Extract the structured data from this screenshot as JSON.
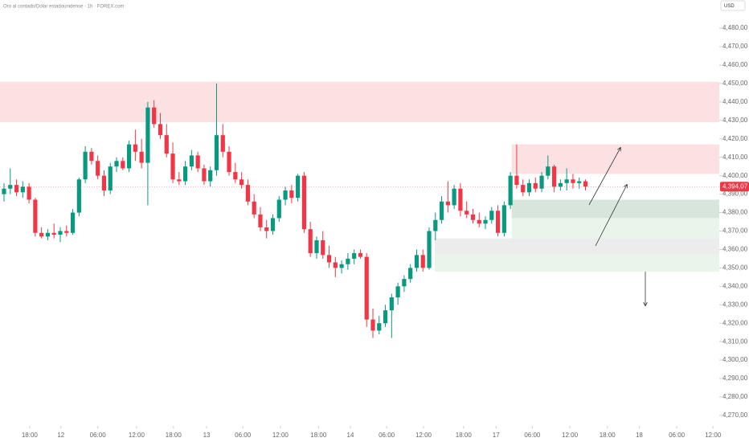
{
  "chart_data": {
    "type": "candlestick",
    "title": "Oro al contado/Dólar estadounidense · 1h · FOREX.com",
    "currency": "USD",
    "up_color": "#089981",
    "down_color": "#f23645",
    "x": [
      0,
      1,
      2,
      3,
      4,
      5,
      6,
      7,
      8,
      9,
      10,
      11,
      12,
      13,
      14,
      15,
      16,
      17,
      18,
      19,
      20,
      21,
      22,
      23,
      24,
      25,
      26,
      27,
      28,
      29,
      30,
      31,
      32,
      33,
      34,
      35,
      36,
      37,
      38,
      39,
      40,
      41,
      42,
      43,
      44,
      45,
      46,
      47,
      48,
      49,
      50,
      51,
      52,
      53,
      54,
      55,
      56,
      57,
      58,
      59,
      60,
      61,
      62,
      63,
      64,
      65,
      66,
      67,
      68,
      69,
      70,
      71,
      72,
      73,
      74,
      75,
      76,
      77,
      78,
      79,
      80,
      81,
      82,
      83,
      84,
      85,
      86,
      87,
      88,
      89,
      90,
      91,
      92,
      93
    ],
    "open": [
      4390,
      4393,
      4395,
      4391,
      4394,
      4387,
      4369,
      4367,
      4369,
      4368,
      4370,
      4369,
      4380,
      4398,
      4413,
      4408,
      4400,
      4392,
      4405,
      4408,
      4404,
      4417,
      4413,
      4407,
      4437,
      4428,
      4422,
      4412,
      4398,
      4397,
      4405,
      4411,
      4404,
      4397,
      4403,
      4422,
      4413,
      4402,
      4398,
      4395,
      4386,
      4379,
      4372,
      4370,
      4377,
      4387,
      4392,
      4388,
      4400,
      4371,
      4358,
      4365,
      4357,
      4353,
      4350,
      4352,
      4355,
      4358,
      4356,
      4322,
      4316,
      4320,
      4327,
      4334,
      4340,
      4344,
      4350,
      4357,
      4350,
      4370,
      4376,
      4386,
      4384,
      4393,
      4381,
      4379,
      4376,
      4374,
      4376,
      4381,
      4369,
      4384,
      4400,
      4395,
      4391,
      4396,
      4393,
      4400,
      4405,
      4394,
      4396,
      4398,
      4396,
      4397
    ],
    "high": [
      4396,
      4404,
      4398,
      4397,
      4396,
      4388,
      4372,
      4371,
      4374,
      4372,
      4373,
      4382,
      4399,
      4416,
      4415,
      4411,
      4403,
      4407,
      4410,
      4410,
      4419,
      4425,
      4420,
      4440,
      4441,
      4434,
      4428,
      4418,
      4402,
      4408,
      4414,
      4413,
      4406,
      4405,
      4450,
      4428,
      4416,
      4407,
      4402,
      4398,
      4390,
      4383,
      4376,
      4379,
      4389,
      4394,
      4395,
      4401,
      4402,
      4375,
      4367,
      4370,
      4362,
      4356,
      4354,
      4358,
      4360,
      4360,
      4358,
      4328,
      4324,
      4330,
      4336,
      4342,
      4346,
      4352,
      4360,
      4360,
      4372,
      4380,
      4389,
      4397,
      4395,
      4396,
      4386,
      4382,
      4380,
      4378,
      4383,
      4384,
      4386,
      4402,
      4417,
      4398,
      4398,
      4399,
      4402,
      4411,
      4406,
      4398,
      4404,
      4401,
      4399,
      4398
    ],
    "low": [
      4386,
      4390,
      4389,
      4388,
      4385,
      4367,
      4366,
      4365,
      4366,
      4364,
      4367,
      4368,
      4378,
      4396,
      4406,
      4398,
      4389,
      4390,
      4402,
      4403,
      4402,
      4408,
      4404,
      4384,
      4426,
      4420,
      4410,
      4396,
      4395,
      4395,
      4403,
      4402,
      4395,
      4394,
      4400,
      4410,
      4400,
      4396,
      4393,
      4384,
      4377,
      4370,
      4366,
      4368,
      4375,
      4384,
      4385,
      4386,
      4369,
      4356,
      4355,
      4355,
      4350,
      4345,
      4347,
      4349,
      4352,
      4355,
      4318,
      4312,
      4314,
      4318,
      4312,
      4330,
      4337,
      4342,
      4348,
      4348,
      4349,
      4365,
      4374,
      4380,
      4382,
      4378,
      4377,
      4374,
      4372,
      4371,
      4374,
      4367,
      4367,
      4382,
      4393,
      4389,
      4389,
      4391,
      4391,
      4398,
      4391,
      4392,
      4392,
      4393,
      4393,
      4392
    ],
    "close": [
      4393,
      4395,
      4391,
      4394,
      4387,
      4369,
      4367,
      4369,
      4368,
      4370,
      4369,
      4380,
      4398,
      4413,
      4408,
      4400,
      4392,
      4405,
      4408,
      4404,
      4417,
      4413,
      4407,
      4437,
      4428,
      4422,
      4412,
      4398,
      4397,
      4405,
      4411,
      4404,
      4397,
      4403,
      4422,
      4413,
      4402,
      4398,
      4395,
      4386,
      4379,
      4372,
      4370,
      4377,
      4387,
      4392,
      4388,
      4400,
      4371,
      4358,
      4365,
      4357,
      4353,
      4350,
      4352,
      4355,
      4358,
      4356,
      4322,
      4316,
      4320,
      4327,
      4334,
      4340,
      4344,
      4350,
      4357,
      4350,
      4370,
      4376,
      4386,
      4384,
      4393,
      4381,
      4379,
      4376,
      4374,
      4376,
      4381,
      4369,
      4384,
      4400,
      4395,
      4391,
      4396,
      4393,
      4400,
      4405,
      4394,
      4396,
      4398,
      4396,
      4397,
      4394.07
    ],
    "xlim": [
      -0.64,
      114.4
    ],
    "xticks": [
      {
        "value": 4.1,
        "label": "18:00"
      },
      {
        "value": 9.1,
        "label": "12"
      },
      {
        "value": 15.0,
        "label": "06:00"
      },
      {
        "value": 21.2,
        "label": "12:00"
      },
      {
        "value": 27.1,
        "label": "18:00"
      },
      {
        "value": 32.4,
        "label": "13"
      },
      {
        "value": 38.2,
        "label": "06:00"
      },
      {
        "value": 44.2,
        "label": "12:00"
      },
      {
        "value": 50.3,
        "label": "18:00"
      },
      {
        "value": 55.4,
        "label": "14"
      },
      {
        "value": 61.2,
        "label": "06:00"
      },
      {
        "value": 67.1,
        "label": "12:00"
      },
      {
        "value": 73.5,
        "label": "18:00"
      },
      {
        "value": 78.7,
        "label": "17"
      },
      {
        "value": 84.5,
        "label": "06:00"
      },
      {
        "value": 90.5,
        "label": "12:00"
      },
      {
        "value": 96.5,
        "label": "18:00"
      },
      {
        "value": 101.6,
        "label": "18"
      },
      {
        "value": 107.6,
        "label": "06:00"
      },
      {
        "value": 113.4,
        "label": "12:00"
      }
    ],
    "ylim": [
      4264.3,
      4495.3
    ],
    "yticks": [
      {
        "value": 4270,
        "label": "4,270,00"
      },
      {
        "value": 4280,
        "label": "4,280,00"
      },
      {
        "value": 4290,
        "label": "4,290,00"
      },
      {
        "value": 4300,
        "label": "4,300,00"
      },
      {
        "value": 4310,
        "label": "4,310,00"
      },
      {
        "value": 4320,
        "label": "4,320,00"
      },
      {
        "value": 4330,
        "label": "4,330,00"
      },
      {
        "value": 4340,
        "label": "4,340,00"
      },
      {
        "value": 4350,
        "label": "4,350,00"
      },
      {
        "value": 4360,
        "label": "4,360,00"
      },
      {
        "value": 4370,
        "label": "4,370,00"
      },
      {
        "value": 4380,
        "label": "4,380,00"
      },
      {
        "value": 4390,
        "label": "4,390,00"
      },
      {
        "value": 4400,
        "label": "4,400,00"
      },
      {
        "value": 4410,
        "label": "4,410,00"
      },
      {
        "value": 4420,
        "label": "4,420,00"
      },
      {
        "value": 4430,
        "label": "4,430,00"
      },
      {
        "value": 4440,
        "label": "4,440,00"
      },
      {
        "value": 4450,
        "label": "4,450,00"
      },
      {
        "value": 4460,
        "label": "4,460,00"
      },
      {
        "value": 4470,
        "label": "4,470,00"
      },
      {
        "value": 4480,
        "label": "4,480,00"
      }
    ],
    "zones": [
      {
        "x0": -0.64,
        "low": 4429,
        "high": 4451,
        "color": "#fce1e3"
      },
      {
        "x0": 81.2,
        "low": 4401,
        "high": 4417,
        "color": "#fce1e3"
      },
      {
        "x0": 81.2,
        "low": 4377,
        "high": 4387,
        "color": "#d7e5dc"
      },
      {
        "x0": 81.2,
        "low": 4366,
        "high": 4377,
        "color": "#e9f5ea"
      },
      {
        "x0": 68.9,
        "low": 4357.6,
        "high": 4366,
        "color": "#ececec"
      },
      {
        "x0": 68.9,
        "low": 4348,
        "high": 4357.6,
        "color": "#e9f5ea"
      }
    ],
    "last_price": {
      "value": 4394.07,
      "label": "4,394,07"
    }
  }
}
